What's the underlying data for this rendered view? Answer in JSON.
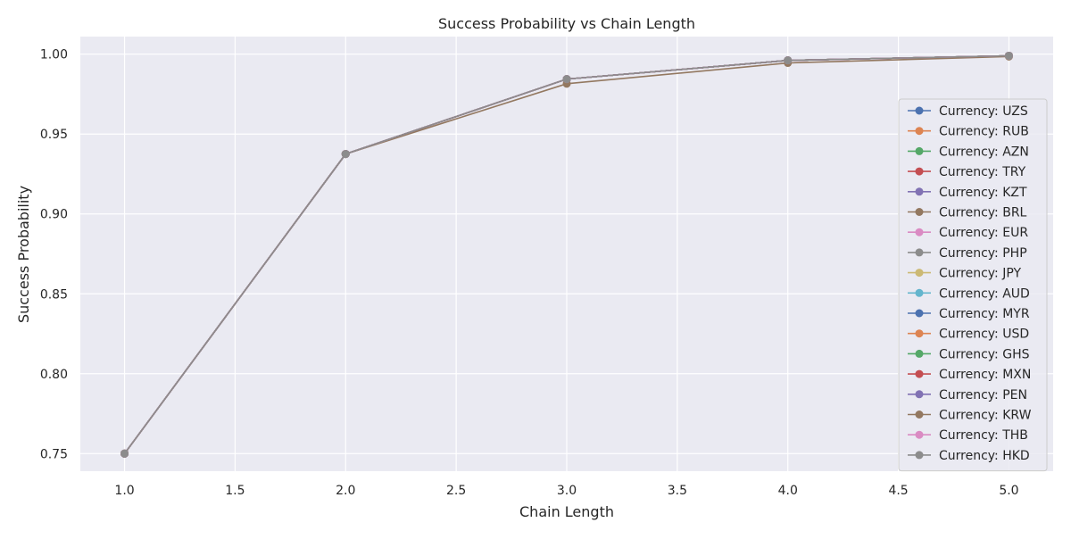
{
  "chart_data": {
    "type": "line",
    "title": "Success Probability vs Chain Length",
    "xlabel": "Chain Length",
    "ylabel": "Success Probability",
    "xlim": [
      0.8,
      5.2
    ],
    "ylim": [
      0.739,
      1.011
    ],
    "xticks": [
      1.0,
      1.5,
      2.0,
      2.5,
      3.0,
      3.5,
      4.0,
      4.5,
      5.0
    ],
    "xtick_labels": [
      "1.0",
      "1.5",
      "2.0",
      "2.5",
      "3.0",
      "3.5",
      "4.0",
      "4.5",
      "5.0"
    ],
    "yticks": [
      0.75,
      0.8,
      0.85,
      0.9,
      0.95,
      1.0
    ],
    "ytick_labels": [
      "0.75",
      "0.80",
      "0.85",
      "0.90",
      "0.95",
      "1.00"
    ],
    "grid": true,
    "background": "#eaeaf2",
    "legend_position": "right",
    "x": [
      1,
      2,
      3,
      4,
      5
    ],
    "series": [
      {
        "name": "Currency: UZS",
        "color": "#4c72b0",
        "values": [
          0.75,
          0.9375,
          0.9844,
          0.9961,
          0.999
        ]
      },
      {
        "name": "Currency: RUB",
        "color": "#dd8452",
        "values": [
          0.75,
          0.9375,
          0.9844,
          0.9961,
          0.999
        ]
      },
      {
        "name": "Currency: AZN",
        "color": "#55a868",
        "values": [
          0.75,
          0.9375,
          0.9844,
          0.9961,
          0.999
        ]
      },
      {
        "name": "Currency: TRY",
        "color": "#c44e52",
        "values": [
          0.75,
          0.9375,
          0.9844,
          0.9961,
          0.999
        ]
      },
      {
        "name": "Currency: KZT",
        "color": "#8172b3",
        "values": [
          0.75,
          0.9375,
          0.9844,
          0.9961,
          0.999
        ]
      },
      {
        "name": "Currency: BRL",
        "color": "#937860",
        "values": [
          0.75,
          0.9375,
          0.9844,
          0.9961,
          0.999
        ]
      },
      {
        "name": "Currency: EUR",
        "color": "#da8bc3",
        "values": [
          0.75,
          0.9375,
          0.9844,
          0.9961,
          0.999
        ]
      },
      {
        "name": "Currency: PHP",
        "color": "#8c8c8c",
        "values": [
          0.75,
          0.9375,
          0.9844,
          0.9961,
          0.999
        ]
      },
      {
        "name": "Currency: JPY",
        "color": "#ccb974",
        "values": [
          0.75,
          0.9375,
          0.9844,
          0.9961,
          0.999
        ]
      },
      {
        "name": "Currency: AUD",
        "color": "#64b5cd",
        "values": [
          0.75,
          0.9375,
          0.9844,
          0.9961,
          0.999
        ]
      },
      {
        "name": "Currency: MYR",
        "color": "#4c72b0",
        "values": [
          0.75,
          0.9375,
          0.9844,
          0.9961,
          0.999
        ]
      },
      {
        "name": "Currency: USD",
        "color": "#dd8452",
        "values": [
          0.75,
          0.9375,
          0.9844,
          0.9961,
          0.999
        ]
      },
      {
        "name": "Currency: GHS",
        "color": "#55a868",
        "values": [
          0.75,
          0.9375,
          0.9844,
          0.9961,
          0.999
        ]
      },
      {
        "name": "Currency: MXN",
        "color": "#c44e52",
        "values": [
          0.75,
          0.9375,
          0.9844,
          0.9961,
          0.999
        ]
      },
      {
        "name": "Currency: PEN",
        "color": "#8172b3",
        "values": [
          0.75,
          0.9375,
          0.9844,
          0.9961,
          0.999
        ]
      },
      {
        "name": "Currency: KRW",
        "color": "#937860",
        "values": [
          0.75,
          0.9375,
          0.9815,
          0.9945,
          0.9985
        ]
      },
      {
        "name": "Currency: THB",
        "color": "#da8bc3",
        "values": [
          0.75,
          0.9375,
          0.9844,
          0.9961,
          0.999
        ]
      },
      {
        "name": "Currency: HKD",
        "color": "#8c8c8c",
        "values": [
          0.75,
          0.9375,
          0.9844,
          0.9961,
          0.999
        ]
      }
    ]
  }
}
